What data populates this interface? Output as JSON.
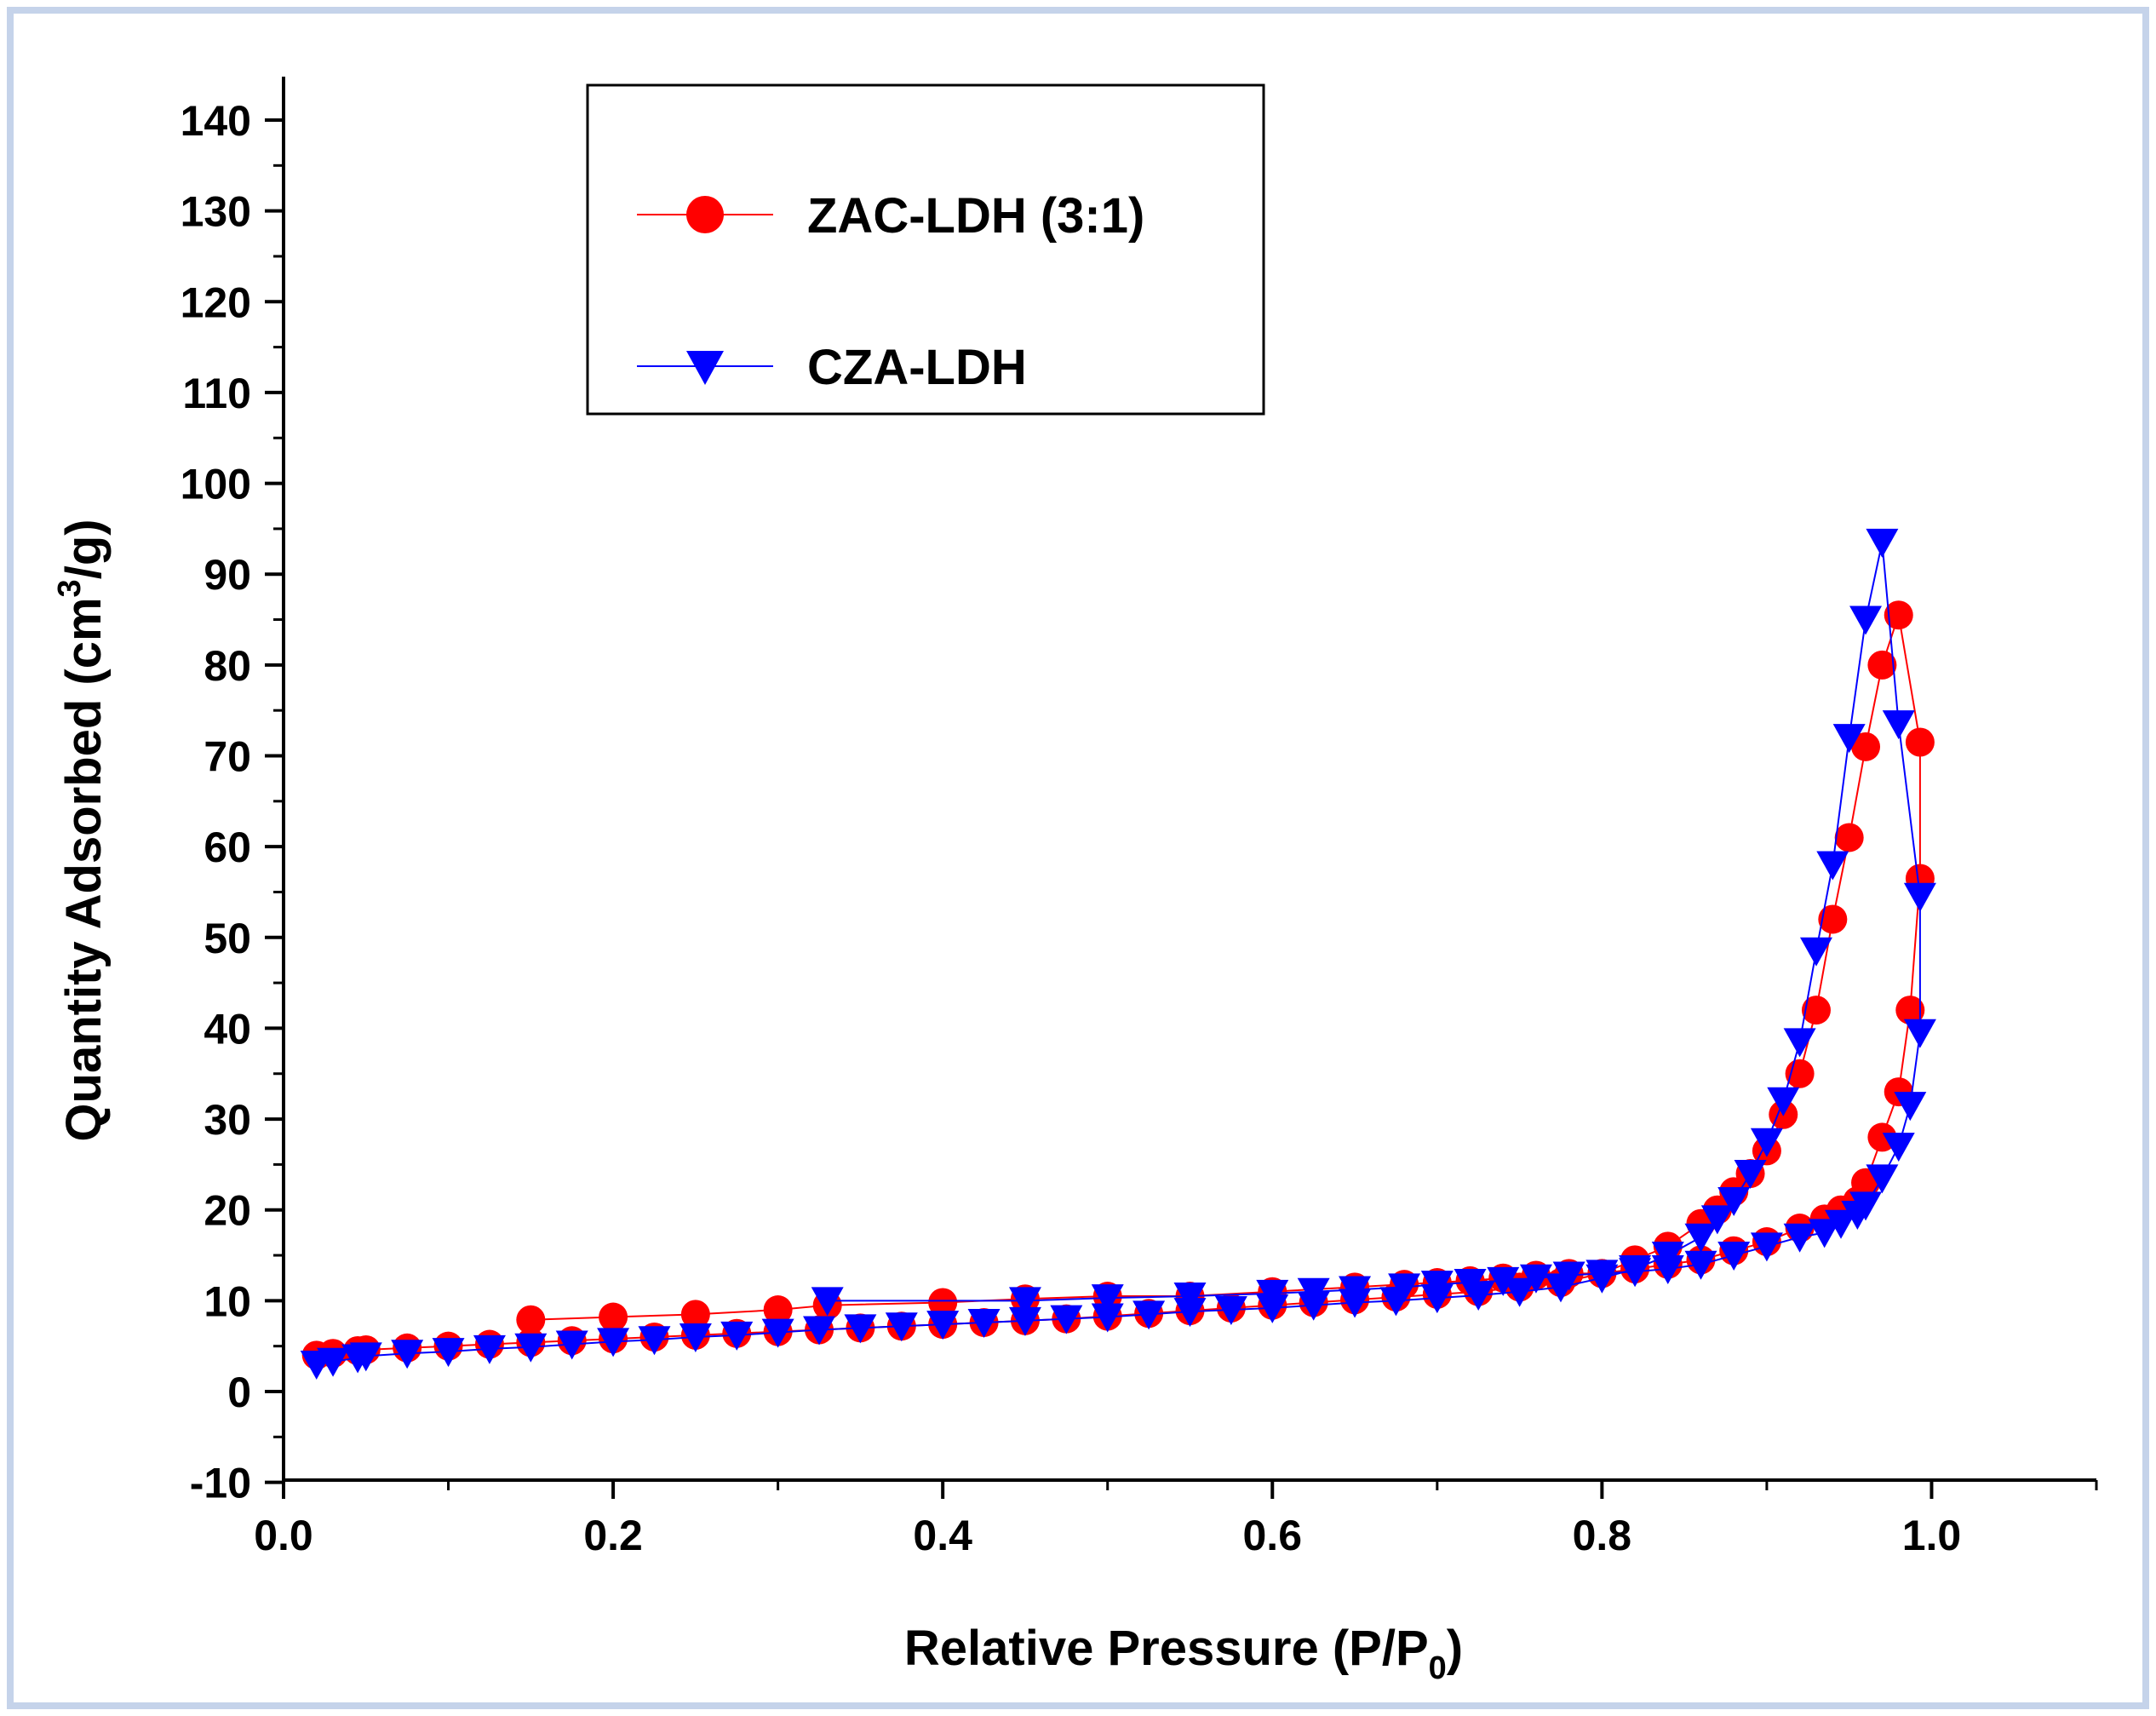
{
  "chart_data": {
    "type": "scatter",
    "title": "",
    "xlabel": "Relative Pressure (P/P",
    "xlabel_sub": "0",
    "xlabel_close": ")",
    "ylabel": "Quantity Adsorbed (cm",
    "ylabel_sup": "3",
    "ylabel_close": "/g)",
    "xlim": [
      0.0,
      1.1
    ],
    "ylim": [
      -10,
      145
    ],
    "x_ticks": [
      0.0,
      0.2,
      0.4,
      0.6,
      0.8,
      1.0
    ],
    "x_tick_labels": [
      "0.0",
      "0.2",
      "0.4",
      "0.6",
      "0.8",
      "1.0"
    ],
    "y_ticks": [
      -10,
      0,
      10,
      20,
      30,
      40,
      50,
      60,
      70,
      80,
      90,
      100,
      110,
      120,
      130,
      140
    ],
    "y_tick_labels": [
      "-10",
      "0",
      "10",
      "20",
      "30",
      "40",
      "50",
      "60",
      "70",
      "80",
      "90",
      "100",
      "110",
      "120",
      "130",
      "140"
    ],
    "legend_position": "top-left",
    "series": [
      {
        "name": "ZAC-LDH (3:1)",
        "color": "#ff0000",
        "marker": "circle",
        "x": [
          0.02,
          0.03,
          0.045,
          0.05,
          0.075,
          0.1,
          0.125,
          0.15,
          0.175,
          0.2,
          0.225,
          0.25,
          0.275,
          0.3,
          0.325,
          0.35,
          0.375,
          0.4,
          0.425,
          0.45,
          0.475,
          0.5,
          0.525,
          0.55,
          0.575,
          0.6,
          0.625,
          0.65,
          0.675,
          0.7,
          0.725,
          0.75,
          0.775,
          0.8,
          0.82,
          0.84,
          0.86,
          0.87,
          0.88,
          0.89,
          0.9,
          0.91,
          0.92,
          0.93,
          0.94,
          0.95,
          0.96,
          0.97,
          0.98,
          0.993,
          0.993,
          0.987,
          0.98,
          0.97,
          0.96,
          0.955,
          0.945,
          0.935,
          0.92,
          0.9,
          0.88,
          0.86,
          0.84,
          0.82,
          0.8,
          0.78,
          0.76,
          0.74,
          0.72,
          0.7,
          0.68,
          0.65,
          0.6,
          0.55,
          0.5,
          0.45,
          0.4,
          0.33,
          0.3,
          0.25,
          0.2,
          0.15
        ],
        "y": [
          4.0,
          4.2,
          4.5,
          4.6,
          4.8,
          5.0,
          5.2,
          5.4,
          5.6,
          5.8,
          6.0,
          6.2,
          6.4,
          6.6,
          6.8,
          7.0,
          7.2,
          7.4,
          7.6,
          7.8,
          8.0,
          8.3,
          8.6,
          8.9,
          9.2,
          9.5,
          9.8,
          10.1,
          10.4,
          10.7,
          11.0,
          11.5,
          12.0,
          13.0,
          14.5,
          16.0,
          18.5,
          20.0,
          22.0,
          24.0,
          26.5,
          30.5,
          35.0,
          42.0,
          52.0,
          61.0,
          71.0,
          80.0,
          85.5,
          71.5,
          56.5,
          42.0,
          33.0,
          28.0,
          23.0,
          21.0,
          20.0,
          19.0,
          18.0,
          16.5,
          15.5,
          14.5,
          14.0,
          13.5,
          13.0,
          13.0,
          12.8,
          12.5,
          12.2,
          12.0,
          11.8,
          11.5,
          11.0,
          10.5,
          10.5,
          10.2,
          9.8,
          9.5,
          9.0,
          8.5,
          8.2,
          7.9
        ]
      },
      {
        "name": "CZA-LDH",
        "color": "#0000ff",
        "marker": "triangle-down",
        "x": [
          0.02,
          0.03,
          0.045,
          0.05,
          0.075,
          0.1,
          0.125,
          0.15,
          0.175,
          0.2,
          0.225,
          0.25,
          0.275,
          0.3,
          0.325,
          0.35,
          0.375,
          0.4,
          0.425,
          0.45,
          0.475,
          0.5,
          0.525,
          0.55,
          0.575,
          0.6,
          0.625,
          0.65,
          0.675,
          0.7,
          0.725,
          0.75,
          0.775,
          0.8,
          0.82,
          0.84,
          0.86,
          0.87,
          0.88,
          0.89,
          0.9,
          0.91,
          0.92,
          0.93,
          0.94,
          0.95,
          0.96,
          0.97,
          0.98,
          0.993,
          0.993,
          0.987,
          0.98,
          0.97,
          0.96,
          0.955,
          0.945,
          0.935,
          0.92,
          0.9,
          0.88,
          0.86,
          0.84,
          0.82,
          0.8,
          0.78,
          0.76,
          0.74,
          0.72,
          0.7,
          0.68,
          0.65,
          0.625,
          0.6,
          0.55,
          0.5,
          0.45,
          0.33
        ],
        "y": [
          3.0,
          3.3,
          3.7,
          3.9,
          4.2,
          4.4,
          4.7,
          4.9,
          5.2,
          5.5,
          5.7,
          6.0,
          6.2,
          6.5,
          6.8,
          7.0,
          7.2,
          7.4,
          7.6,
          7.8,
          8.0,
          8.2,
          8.5,
          8.8,
          9.0,
          9.2,
          9.5,
          9.8,
          10.0,
          10.3,
          10.6,
          11.0,
          11.5,
          12.5,
          13.5,
          15.0,
          17.0,
          19.0,
          21.0,
          24.0,
          27.5,
          32.0,
          38.5,
          48.5,
          58.0,
          72.0,
          85.0,
          93.5,
          73.5,
          54.5,
          39.5,
          31.5,
          27.0,
          23.5,
          20.5,
          19.5,
          18.5,
          17.5,
          17.0,
          16.0,
          15.0,
          14.0,
          13.5,
          13.2,
          13.0,
          12.8,
          12.5,
          12.2,
          12.0,
          11.8,
          11.5,
          11.2,
          11.0,
          10.8,
          10.5,
          10.3,
          10.0,
          10.0
        ]
      }
    ]
  }
}
